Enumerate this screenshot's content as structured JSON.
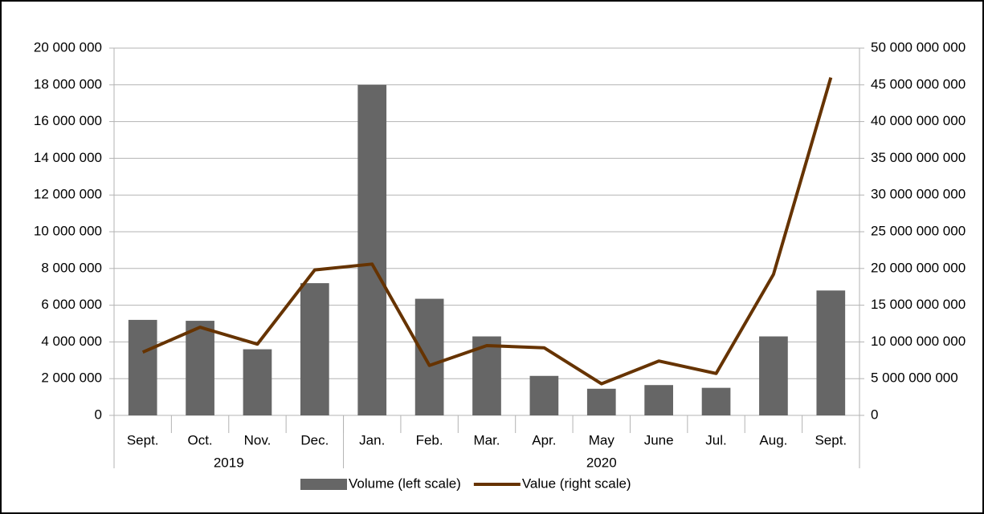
{
  "chart_data": {
    "type": "bar_line",
    "categories": [
      "Sept.",
      "Oct.",
      "Nov.",
      "Dec.",
      "Jan.",
      "Feb.",
      "Mar.",
      "Apr.",
      "May",
      "June",
      "Jul.",
      "Aug.",
      "Sept."
    ],
    "category_groups": [
      {
        "label": "2019",
        "count": 4
      },
      {
        "label": "2020",
        "count": 9
      }
    ],
    "series": [
      {
        "name": "Volume (left scale)",
        "type": "bar",
        "color": "#666666",
        "axis": "y",
        "values": [
          5200000,
          5150000,
          3600000,
          7200000,
          18000000,
          6350000,
          4300000,
          2150000,
          1450000,
          1650000,
          1500000,
          4300000,
          6800000
        ]
      },
      {
        "name": "Value (right scale)",
        "type": "line",
        "color": "#663300",
        "axis": "y2",
        "values": [
          8600000000,
          12000000000,
          9700000000,
          19800000000,
          20600000000,
          6800000000,
          9500000000,
          9200000000,
          4300000000,
          7400000000,
          5700000000,
          19200000000,
          46000000000
        ]
      }
    ],
    "ylim": [
      0,
      20000000
    ],
    "yticks": [
      0,
      {
        "value": 2000000,
        "label": "2 000 000"
      },
      {
        "value": 4000000,
        "label": "4 000 000"
      },
      {
        "value": 6000000,
        "label": "6 000 000"
      },
      {
        "value": 8000000,
        "label": "8 000 000"
      },
      {
        "value": 10000000,
        "label": "10 000 000"
      },
      {
        "value": 12000000,
        "label": "12 000 000"
      },
      {
        "value": 14000000,
        "label": "14 000 000"
      },
      {
        "value": 16000000,
        "label": "16 000 000"
      },
      {
        "value": 18000000,
        "label": "18 000 000"
      },
      {
        "value": 20000000,
        "label": "20 000 000"
      }
    ],
    "y2lim": [
      0,
      50000000000
    ],
    "y2ticks": [
      0,
      {
        "value": 5000000000,
        "label": "5 000 000 000"
      },
      {
        "value": 10000000000,
        "label": "10 000 000 000"
      },
      {
        "value": 15000000000,
        "label": "15 000 000 000"
      },
      {
        "value": 20000000000,
        "label": "20 000 000 000"
      },
      {
        "value": 25000000000,
        "label": "25 000 000 000"
      },
      {
        "value": 30000000000,
        "label": "30 000 000 000"
      },
      {
        "value": 35000000000,
        "label": "35 000 000 000"
      },
      {
        "value": 40000000000,
        "label": "40 000 000 000"
      },
      {
        "value": 45000000000,
        "label": "45 000 000 000"
      },
      {
        "value": 50000000000,
        "label": "50 000 000 000"
      }
    ],
    "grid": true,
    "legend": "bottom"
  }
}
